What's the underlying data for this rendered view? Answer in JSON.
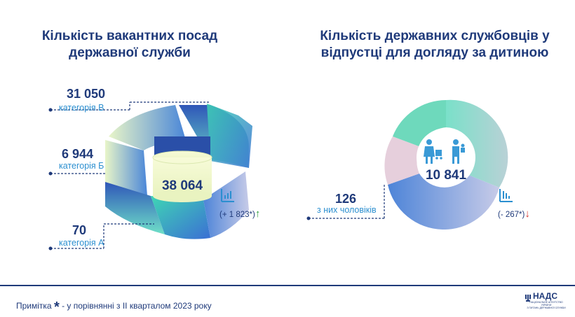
{
  "left": {
    "title_line1": "Кількість вакантних посад",
    "title_line2": "державної служби",
    "total": "38 064",
    "delta": "(+ 1 823*)",
    "delta_arrow": "↑",
    "categories": [
      {
        "value": "31 050",
        "label": "категорія В"
      },
      {
        "value": "6 944",
        "label": "категорія Б"
      },
      {
        "value": "70",
        "label": "категорія А"
      }
    ]
  },
  "right": {
    "title_line1": "Кількість державних службовців у",
    "title_line2": "відпустці для догляду за дитиною",
    "total": "10 841",
    "delta": "(- 267*)",
    "delta_arrow": "↓",
    "men_value": "126",
    "men_label": "з них чоловіків"
  },
  "footer": {
    "note_prefix": "Примітка",
    "note_star": "*",
    "note_text": " - у порівнянні з II кварталом 2023 року",
    "logo_text": "НАДС",
    "logo_sub1": "НАЦІОНАЛЬНЕ АГЕНТСТВО УКРАЇНИ",
    "logo_sub2": "З ПИТАНЬ ДЕРЖАВНОЇ СЛУЖБИ"
  },
  "icons": [
    "bar-chart-up-icon",
    "bar-chart-down-icon",
    "family-icon",
    "trident-icon"
  ],
  "colors": {
    "accent": "#1f3a7a",
    "category": "#2b8fd0",
    "up": "#2e9e3e",
    "down": "#d6362f"
  },
  "chart_data": [
    {
      "type": "pie",
      "title": "Кількість вакантних посад державної служби",
      "categories": [
        "категорія В",
        "категорія Б",
        "категорія А"
      ],
      "values": [
        31050,
        6944,
        70
      ],
      "total": 38064,
      "change": 1823
    },
    {
      "type": "pie",
      "title": "Кількість державних службовців у відпустці для догляду за дитиною",
      "categories": [
        "з них чоловіків"
      ],
      "values": [
        126
      ],
      "total": 10841,
      "change": -267
    }
  ]
}
